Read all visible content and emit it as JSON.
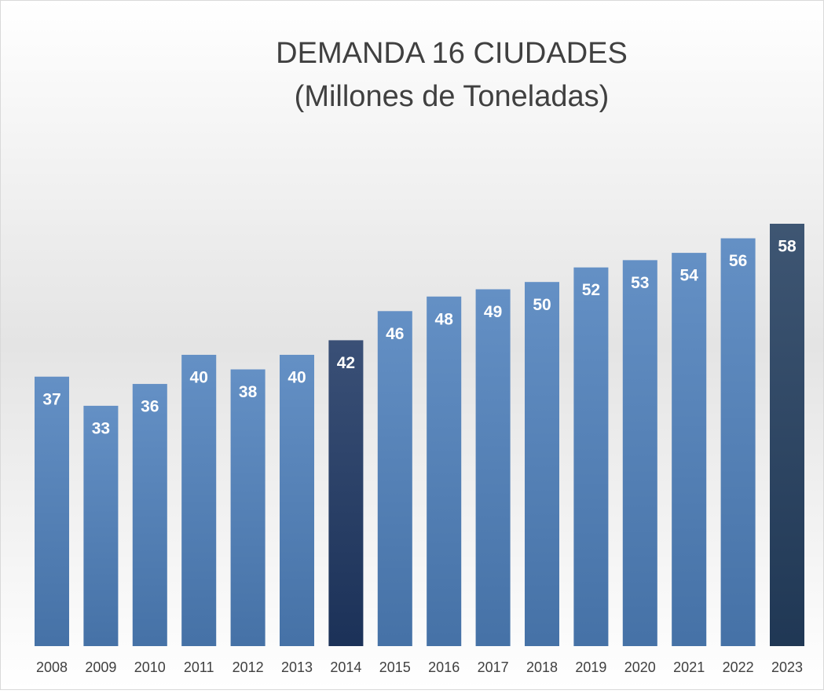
{
  "chart_data": {
    "type": "bar",
    "title": "DEMANDA  16 CIUDADES",
    "subtitle": "(Millones de Toneladas)",
    "categories": [
      "2008",
      "2009",
      "2010",
      "2011",
      "2012",
      "2013",
      "2014",
      "2015",
      "2016",
      "2017",
      "2018",
      "2019",
      "2020",
      "2021",
      "2022",
      "2023"
    ],
    "values": [
      37,
      33,
      36,
      40,
      38,
      40,
      42,
      46,
      48,
      49,
      50,
      52,
      53,
      54,
      56,
      58
    ],
    "colors": [
      "#4f81bd",
      "#4f81bd",
      "#4f81bd",
      "#4f81bd",
      "#4f81bd",
      "#4f81bd",
      "#1f3864",
      "#4f81bd",
      "#4f81bd",
      "#4f81bd",
      "#4f81bd",
      "#4f81bd",
      "#4f81bd",
      "#4f81bd",
      "#4f81bd",
      "#243f60"
    ]
  }
}
